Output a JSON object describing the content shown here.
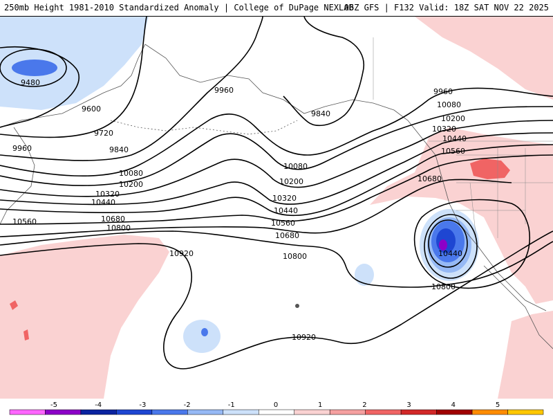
{
  "header": {
    "title_left": "250mb Height 1981-2010 Standardized Anomaly | College of DuPage NEXLAB",
    "title_right": "06Z GFS | F132 Valid: 18Z SAT NOV 22 2025"
  },
  "contours": [
    {
      "label": "9480"
    },
    {
      "label": "9600"
    },
    {
      "label": "9720"
    },
    {
      "label": "9840"
    },
    {
      "label": "9840"
    },
    {
      "label": "9960"
    },
    {
      "label": "9960"
    },
    {
      "label": "9960"
    },
    {
      "label": "10080"
    },
    {
      "label": "10080"
    },
    {
      "label": "10080"
    },
    {
      "label": "10200"
    },
    {
      "label": "10200"
    },
    {
      "label": "10200"
    },
    {
      "label": "10320"
    },
    {
      "label": "10320"
    },
    {
      "label": "10320"
    },
    {
      "label": "10440"
    },
    {
      "label": "10440"
    },
    {
      "label": "10440"
    },
    {
      "label": "10440"
    },
    {
      "label": "10560"
    },
    {
      "label": "10560"
    },
    {
      "label": "10560"
    },
    {
      "label": "10680"
    },
    {
      "label": "10680"
    },
    {
      "label": "10680"
    },
    {
      "label": "10800"
    },
    {
      "label": "10800"
    },
    {
      "label": "10800"
    },
    {
      "label": "10920"
    },
    {
      "label": "10920"
    }
  ],
  "legend": {
    "ticks": [
      "-5",
      "-4",
      "-3",
      "-2",
      "-1",
      "0",
      "1",
      "2",
      "3",
      "4",
      "5"
    ],
    "colors": [
      "#ff66ff",
      "#8c00c8",
      "#0a23a0",
      "#1e46d2",
      "#4a78eb",
      "#96b9f5",
      "#cde1fa",
      "#ffffff",
      "#fad2d2",
      "#f5a0a0",
      "#f06464",
      "#d22828",
      "#a00000",
      "#ff8c00",
      "#ffc800"
    ]
  },
  "colors": {
    "contour": "#000000",
    "negative_light": "#cde1fa",
    "negative_mid": "#96b9f5",
    "negative_strong": "#4a78eb",
    "negative_deep": "#1e46d2",
    "negative_extreme": "#8c00c8",
    "positive_light": "#fad2d2",
    "positive_mid": "#f06464"
  }
}
